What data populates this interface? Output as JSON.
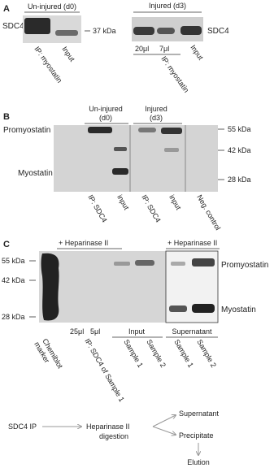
{
  "panel_a": {
    "label": "A",
    "left": {
      "header": "Un-injured (d0)",
      "protein": "SDC4",
      "marker": "37 kDa",
      "lanes": [
        "IP: myostatin",
        "Input"
      ]
    },
    "right": {
      "header": "Injured (d3)",
      "protein": "SDC4",
      "volumes": [
        "20μl",
        "7μl"
      ],
      "lanes": [
        "IP: myostatin",
        "Input"
      ]
    }
  },
  "panel_b": {
    "label": "B",
    "groups": [
      {
        "header": [
          "Un-injured",
          "(d0)"
        ]
      },
      {
        "header": [
          "Injured",
          "(d3)"
        ]
      }
    ],
    "bands": [
      "Promyostatin",
      "Myostatin"
    ],
    "markers": [
      "55 kDa",
      "42 kDa",
      "28 kDa"
    ],
    "lanes": [
      "IP: SDC4",
      "input",
      "IP: SDC4",
      "input",
      "Neg. control"
    ]
  },
  "panel_c": {
    "label": "C",
    "treatments": [
      "+ Heparinase II",
      "+ Heparinase II"
    ],
    "markers": [
      "55 kDa",
      "42 kDa",
      "28 kDa"
    ],
    "bands": [
      "Promyostatin",
      "Myostatin"
    ],
    "volumes": [
      "25μl",
      "5μl"
    ],
    "groups": [
      "Input",
      "Supernatant"
    ],
    "lanes": [
      [
        "Chemiblot",
        "marker"
      ],
      "IP: SDC4 of Sample 1",
      "Sample 1",
      "Sample 2",
      "Sample 1",
      "Sample 2"
    ]
  },
  "flow": {
    "start": "SDC4 IP",
    "step": [
      "Heparinase II",
      "digestion"
    ],
    "outputs": [
      "Supernatant",
      "Precipitate"
    ],
    "final": "Elution"
  }
}
